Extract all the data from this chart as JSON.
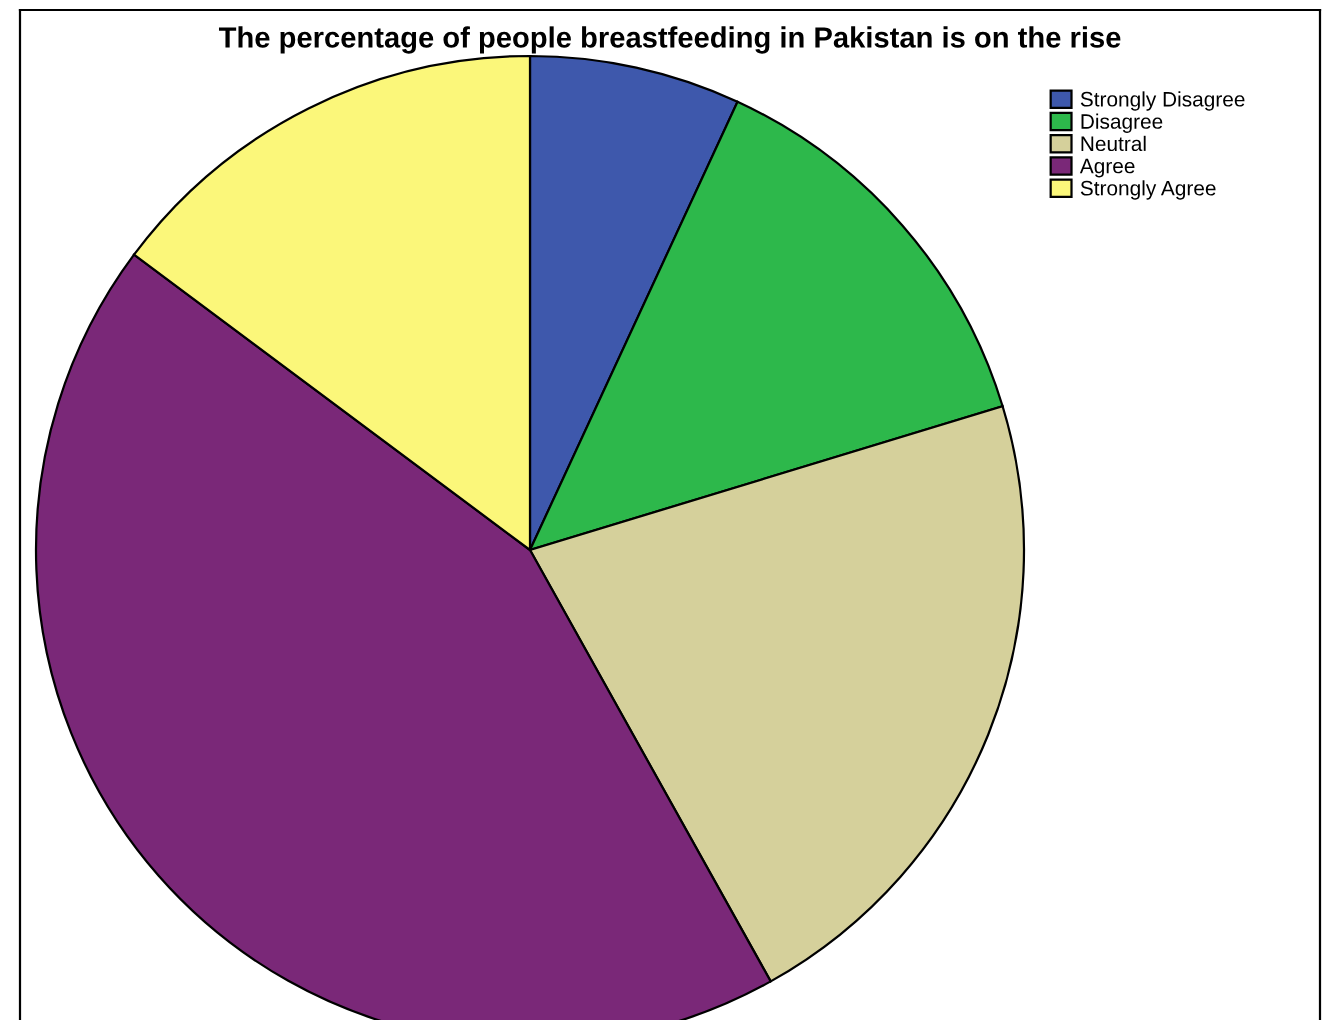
{
  "chart_data": {
    "type": "pie",
    "title": "The percentage of people breastfeeding in Pakistan is on the rise",
    "categories": [
      "Strongly Disagree",
      "Disagree",
      "Neutral",
      "Agree",
      "Strongly Agree"
    ],
    "values": [
      6.9,
      13.4,
      21.6,
      43.3,
      14.8
    ],
    "colors": [
      "#3e58ac",
      "#2db84b",
      "#d5d09b",
      "#7a2878",
      "#fbf77a"
    ],
    "legend": "top right"
  }
}
